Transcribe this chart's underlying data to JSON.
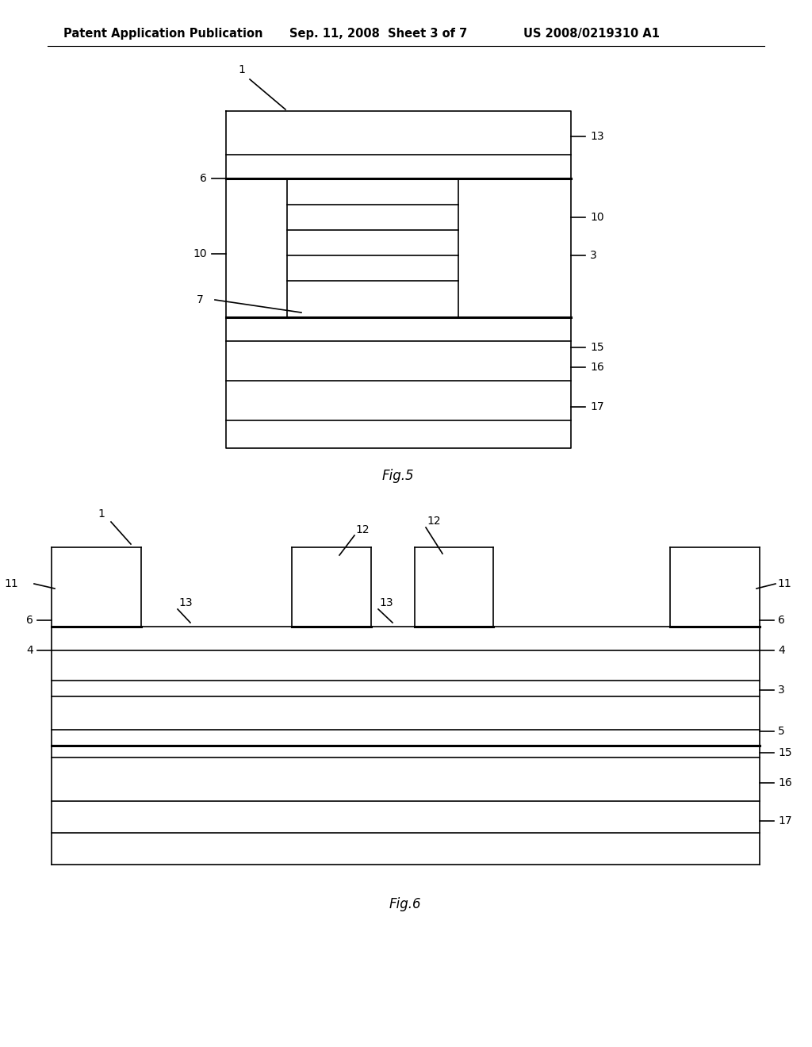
{
  "bg_color": "#ffffff",
  "header_left": "Patent Application Publication",
  "header_mid": "Sep. 11, 2008  Sheet 3 of 7",
  "header_right": "US 2008/0219310 A1",
  "fig5_caption": "Fig.5",
  "fig6_caption": "Fig.6",
  "line_color": "#000000",
  "lw": 1.2,
  "lw_thick": 2.2,
  "fs_header": 10.5,
  "fs_label": 10,
  "fs_caption": 12
}
